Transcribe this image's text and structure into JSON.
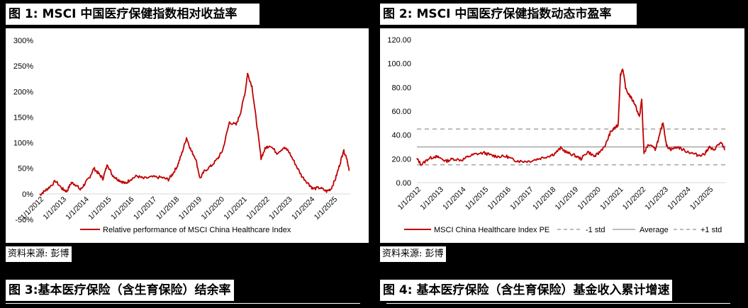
{
  "figures": [
    {
      "title": "图 1: MSCI 中国医疗保健指数相对收益率",
      "source": "资料来源: 彭博"
    },
    {
      "title": "图 2: MSCI 中国医疗保健指数动态市盈率",
      "source": "资料来源: 彭博"
    },
    {
      "title": "图 3:基本医疗保险（含生育保险）结余率"
    },
    {
      "title": "图 4: 基本医疗保险（含生育保险）基金收入累计增速"
    }
  ],
  "colors": {
    "series": "#C00000",
    "band": "#A6A6A6",
    "average": "#A6A6A6",
    "axis": "#D9D9D9"
  },
  "chart_data": [
    {
      "type": "line",
      "title": "MSCI 中国医疗保健指数相对收益率",
      "xlabel": "",
      "ylabel": "",
      "ylim": [
        -0.5,
        3.0
      ],
      "y_ticks": [
        "-50%",
        "0%",
        "50%",
        "100%",
        "150%",
        "200%",
        "250%",
        "300%"
      ],
      "x_ticks": [
        "1/1/2012",
        "1/1/2013",
        "1/1/2014",
        "1/1/2015",
        "1/1/2016",
        "1/1/2017",
        "1/1/2018",
        "1/1/2019",
        "1/1/2020",
        "1/1/2021",
        "1/1/2022",
        "1/1/2023",
        "1/1/2024",
        "1/1/2025"
      ],
      "grid": false,
      "legend_position": "bottom",
      "series": [
        {
          "name": "Relative performance of MSCI China Healthcare Index",
          "x": [
            2012.0,
            2012.2,
            2012.4,
            2012.7,
            2013.0,
            2013.2,
            2013.4,
            2013.6,
            2013.8,
            2014.0,
            2014.2,
            2014.4,
            2014.6,
            2014.8,
            2015.0,
            2015.2,
            2015.4,
            2015.6,
            2015.8,
            2016.0,
            2016.3,
            2016.6,
            2017.0,
            2017.4,
            2017.7,
            2017.9,
            2018.1,
            2018.3,
            2018.5,
            2018.7,
            2018.9,
            2019.1,
            2019.3,
            2019.6,
            2019.9,
            2020.1,
            2020.4,
            2020.7,
            2020.9,
            2021.1,
            2021.2,
            2021.4,
            2021.6,
            2021.8,
            2022.0,
            2022.2,
            2022.5,
            2022.8,
            2023.0,
            2023.3,
            2023.6,
            2023.9,
            2024.1,
            2024.4,
            2024.7,
            2024.9,
            2025.1,
            2025.3,
            2025.45,
            2025.6,
            2025.7
          ],
          "y": [
            -0.02,
            0.05,
            0.12,
            0.25,
            0.1,
            0.05,
            0.22,
            0.18,
            0.08,
            0.2,
            0.32,
            0.5,
            0.4,
            0.3,
            0.58,
            0.38,
            0.3,
            0.25,
            0.2,
            0.28,
            0.35,
            0.3,
            0.33,
            0.32,
            0.28,
            0.4,
            0.55,
            0.8,
            1.1,
            0.85,
            0.7,
            0.3,
            0.45,
            0.55,
            0.7,
            0.85,
            1.4,
            1.35,
            1.6,
            2.0,
            2.35,
            2.1,
            1.4,
            0.7,
            0.9,
            0.95,
            0.8,
            0.9,
            0.85,
            0.6,
            0.35,
            0.2,
            0.1,
            0.12,
            0.05,
            0.1,
            0.3,
            0.6,
            0.85,
            0.7,
            0.45
          ]
        }
      ]
    },
    {
      "type": "line",
      "title": "MSCI 中国医疗保健指数动态市盈率",
      "xlabel": "",
      "ylabel": "",
      "ylim": [
        0,
        120
      ],
      "y_ticks": [
        "0.00",
        "20.00",
        "40.00",
        "60.00",
        "80.00",
        "100.00",
        "120.00"
      ],
      "x_ticks": [
        "1/1/2012",
        "1/1/2013",
        "1/1/2014",
        "1/1/2015",
        "1/1/2016",
        "1/1/2017",
        "1/1/2018",
        "1/1/2019",
        "1/1/2020",
        "1/1/2021",
        "1/1/2022",
        "1/1/2023",
        "1/1/2024",
        "1/1/2025"
      ],
      "grid": false,
      "legend_position": "bottom",
      "series": [
        {
          "name": "MSCI China Healthcare Index PE",
          "x": [
            2012.0,
            2012.2,
            2012.5,
            2012.8,
            2013.0,
            2013.3,
            2013.6,
            2014.0,
            2014.3,
            2014.6,
            2015.0,
            2015.3,
            2015.6,
            2016.0,
            2016.3,
            2016.6,
            2017.0,
            2017.4,
            2017.8,
            2018.1,
            2018.4,
            2018.7,
            2019.0,
            2019.3,
            2019.6,
            2019.9,
            2020.1,
            2020.4,
            2020.6,
            2020.8,
            2020.95,
            2021.05,
            2021.15,
            2021.3,
            2021.5,
            2021.7,
            2021.9,
            2022.0,
            2022.1,
            2022.3,
            2022.6,
            2022.8,
            2022.95,
            2023.1,
            2023.3,
            2023.6,
            2023.9,
            2024.2,
            2024.5,
            2024.8,
            2025.0,
            2025.2,
            2025.4,
            2025.55,
            2025.7
          ],
          "y": [
            20,
            15,
            20,
            22,
            21,
            18,
            20,
            19,
            22,
            24,
            25,
            23,
            22,
            22,
            19,
            18,
            18,
            20,
            22,
            24,
            29,
            25,
            23,
            20,
            26,
            22,
            25,
            32,
            42,
            46,
            48,
            90,
            96,
            78,
            72,
            66,
            55,
            70,
            25,
            32,
            28,
            40,
            51,
            31,
            28,
            30,
            27,
            25,
            23,
            24,
            30,
            27,
            32,
            33,
            28
          ]
        },
        {
          "name": "-1 std",
          "y": 15,
          "style": "dashed"
        },
        {
          "name": "Average",
          "y": 30,
          "style": "solid"
        },
        {
          "name": "+1 std",
          "y": 45,
          "style": "dashed"
        }
      ]
    }
  ]
}
